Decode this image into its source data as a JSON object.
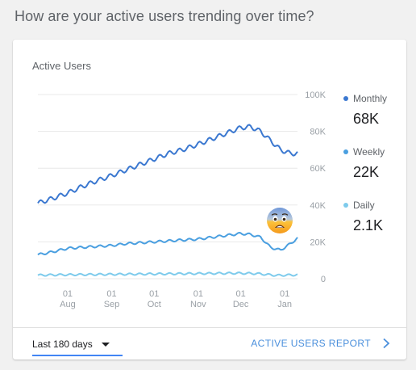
{
  "question": "How are your active users trending over time?",
  "card": {
    "title": "Active Users"
  },
  "colors": {
    "monthly": "#3b78d0",
    "weekly": "#4a9fe0",
    "daily": "#7ecbec",
    "grid": "#e8e8e8",
    "link": "#4a8fdc"
  },
  "chart_data": {
    "type": "line",
    "title": "",
    "xlabel": "",
    "ylabel": "",
    "ylim": [
      0,
      100000
    ],
    "y_ticks": [
      "0",
      "20K",
      "40K",
      "60K",
      "80K",
      "100K"
    ],
    "x_ticks": [
      {
        "day": "01",
        "month": "Aug",
        "date": "2017-08-01"
      },
      {
        "day": "01",
        "month": "Sep",
        "date": "2017-09-01"
      },
      {
        "day": "01",
        "month": "Oct",
        "date": "2017-10-01"
      },
      {
        "day": "01",
        "month": "Nov",
        "date": "2017-11-01"
      },
      {
        "day": "01",
        "month": "Dec",
        "date": "2017-12-01"
      },
      {
        "day": "01",
        "month": "Jan",
        "date": "2018-01-01"
      }
    ],
    "x_range": [
      "2017-07-11",
      "2018-01-10"
    ],
    "grid": true,
    "legend_position": "right",
    "series": [
      {
        "name": "Monthly",
        "latest_label": "68K",
        "color": "#3b78d0",
        "points": [
          [
            "2017-07-11",
            41000
          ],
          [
            "2017-07-21",
            43500
          ],
          [
            "2017-08-01",
            46500
          ],
          [
            "2017-08-11",
            50000
          ],
          [
            "2017-08-21",
            53000
          ],
          [
            "2017-09-01",
            56000
          ],
          [
            "2017-09-11",
            59000
          ],
          [
            "2017-09-21",
            62000
          ],
          [
            "2017-10-01",
            65000
          ],
          [
            "2017-10-11",
            68000
          ],
          [
            "2017-10-21",
            70000
          ],
          [
            "2017-11-01",
            73000
          ],
          [
            "2017-11-11",
            76000
          ],
          [
            "2017-11-21",
            79000
          ],
          [
            "2017-12-01",
            82000
          ],
          [
            "2017-12-08",
            82500
          ],
          [
            "2017-12-15",
            80000
          ],
          [
            "2017-12-22",
            75000
          ],
          [
            "2017-12-29",
            70000
          ],
          [
            "2018-01-05",
            68000
          ],
          [
            "2018-01-10",
            68000
          ]
        ]
      },
      {
        "name": "Weekly",
        "latest_label": "22K",
        "color": "#4a9fe0",
        "points": [
          [
            "2017-07-11",
            13000
          ],
          [
            "2017-07-21",
            14500
          ],
          [
            "2017-08-01",
            16500
          ],
          [
            "2017-08-11",
            17000
          ],
          [
            "2017-08-21",
            17500
          ],
          [
            "2017-09-01",
            18000
          ],
          [
            "2017-09-11",
            19000
          ],
          [
            "2017-09-21",
            19500
          ],
          [
            "2017-10-01",
            20000
          ],
          [
            "2017-10-11",
            20500
          ],
          [
            "2017-10-21",
            21000
          ],
          [
            "2017-11-01",
            21500
          ],
          [
            "2017-11-11",
            22500
          ],
          [
            "2017-11-21",
            23500
          ],
          [
            "2017-12-01",
            24500
          ],
          [
            "2017-12-08",
            24000
          ],
          [
            "2017-12-15",
            22500
          ],
          [
            "2017-12-22",
            17000
          ],
          [
            "2017-12-29",
            15500
          ],
          [
            "2018-01-05",
            19000
          ],
          [
            "2018-01-10",
            22000
          ]
        ]
      },
      {
        "name": "Daily",
        "latest_label": "2.1K",
        "color": "#7ecbec",
        "points": [
          [
            "2017-07-11",
            1900
          ],
          [
            "2017-07-25",
            2100
          ],
          [
            "2017-08-08",
            2200
          ],
          [
            "2017-08-22",
            2300
          ],
          [
            "2017-09-05",
            2400
          ],
          [
            "2017-09-19",
            2500
          ],
          [
            "2017-10-03",
            2600
          ],
          [
            "2017-10-17",
            2700
          ],
          [
            "2017-10-31",
            2800
          ],
          [
            "2017-11-14",
            2900
          ],
          [
            "2017-11-28",
            3000
          ],
          [
            "2017-12-12",
            2800
          ],
          [
            "2017-12-26",
            1800
          ],
          [
            "2018-01-10",
            2100
          ]
        ]
      }
    ]
  },
  "footer": {
    "range_label": "Last 180 days",
    "report_label": "ACTIVE USERS REPORT"
  }
}
